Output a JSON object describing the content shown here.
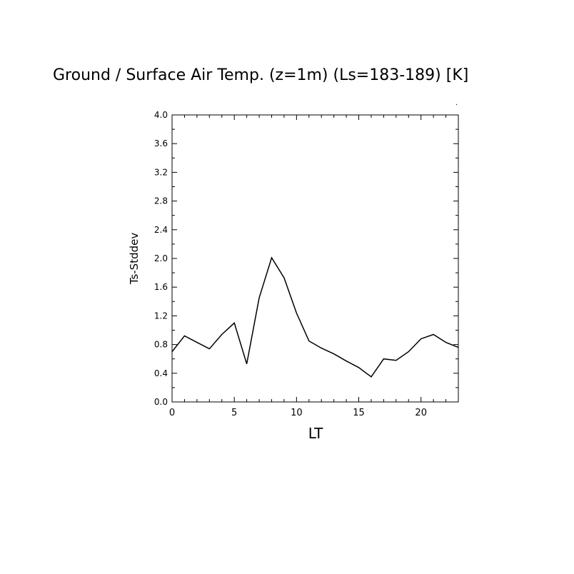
{
  "chart_data": {
    "type": "line",
    "title": "Ground / Surface Air Temp. (z=1m) (Ls=183-189) [K]",
    "xlabel": "LT",
    "ylabel": "Ts-Stddev",
    "xlim": [
      0,
      23
    ],
    "ylim": [
      0,
      4.0
    ],
    "x_ticks": [
      0,
      5,
      10,
      15,
      20
    ],
    "x_tick_labels": [
      "0",
      "5",
      "10",
      "15",
      "20"
    ],
    "y_ticks": [
      0,
      0.4,
      0.8,
      1.2,
      1.6,
      2.0,
      2.4,
      2.8,
      3.2,
      3.6,
      4.0
    ],
    "y_tick_labels": [
      "0.0",
      "0.4",
      "0.8",
      "1.2",
      "1.6",
      "2.0",
      "2.4",
      "2.8",
      "3.2",
      "3.6",
      "4.0"
    ],
    "grid": false,
    "series": [
      {
        "x": [
          0,
          1,
          2,
          3,
          4,
          5,
          6,
          7,
          8,
          9,
          10,
          11,
          12,
          13,
          14,
          15,
          16,
          17,
          18,
          19,
          20,
          21,
          22,
          23
        ],
        "values": [
          0.7,
          0.92,
          0.83,
          0.74,
          0.94,
          1.1,
          0.53,
          1.45,
          2.01,
          1.73,
          1.24,
          0.85,
          0.75,
          0.67,
          0.57,
          0.48,
          0.35,
          0.6,
          0.58,
          0.7,
          0.88,
          0.94,
          0.83,
          0.76
        ],
        "color": "#000000"
      }
    ]
  }
}
